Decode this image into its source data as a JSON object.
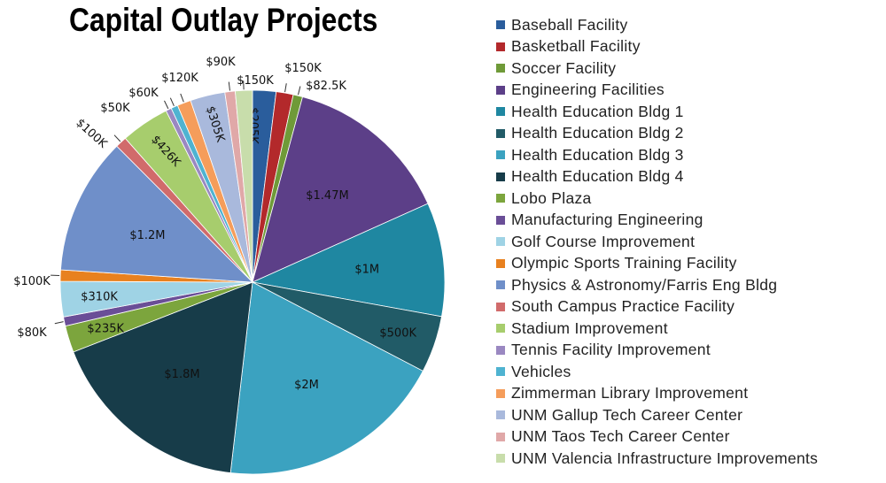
{
  "chart_data": {
    "type": "pie",
    "title": "Capital Outlay Projects",
    "legend_position": "right",
    "start": "top, clockwise",
    "slices": [
      {
        "name": "Baseball Facility",
        "value": 205000,
        "label": "$205K",
        "color": "#2a5d9c"
      },
      {
        "name": "Basketball Facility",
        "value": 150000,
        "label": "$150K",
        "color": "#b3292b"
      },
      {
        "name": "Soccer Facility",
        "value": 82500,
        "label": "$82.5K",
        "color": "#6f9a38"
      },
      {
        "name": "Engineering Facilities",
        "value": 1470000,
        "label": "$1.47M",
        "color": "#5c3f88"
      },
      {
        "name": "Health Education Bldg 1",
        "value": 1000000,
        "label": "$1M",
        "color": "#1f87a1"
      },
      {
        "name": "Health Education Bldg 2",
        "value": 500000,
        "label": "$500K",
        "color": "#215b67"
      },
      {
        "name": "Health Education Bldg 3",
        "value": 2000000,
        "label": "$2M",
        "color": "#3ba2c0"
      },
      {
        "name": "Health Education Bldg 4",
        "value": 1800000,
        "label": "$1.8M",
        "color": "#173c49"
      },
      {
        "name": "Lobo Plaza",
        "value": 235000,
        "label": "$235K",
        "color": "#7ca53d"
      },
      {
        "name": "Manufacturing Engineering",
        "value": 80000,
        "label": "$80K",
        "color": "#6a4e97"
      },
      {
        "name": "Golf Course Improvement",
        "value": 310000,
        "label": "$310K",
        "color": "#9fd3e5"
      },
      {
        "name": "Olympic Sports Training Facility",
        "value": 100000,
        "label": "$100K",
        "color": "#e8811f"
      },
      {
        "name": "Physics & Astronomy/Farris Eng Bldg",
        "value": 1200000,
        "label": "$1.2M",
        "color": "#6f8fc9"
      },
      {
        "name": "South Campus Practice Facility",
        "value": 100000,
        "label": "$100K",
        "color": "#d16b6b"
      },
      {
        "name": "Stadium Improvement",
        "value": 426000,
        "label": "$426K",
        "color": "#a7cd6d"
      },
      {
        "name": "Tennis Facility Improvement",
        "value": 50000,
        "label": "$50K",
        "color": "#9a88c1"
      },
      {
        "name": "Vehicles",
        "value": 60000,
        "label": "$60K",
        "color": "#4fb3d1"
      },
      {
        "name": "Zimmerman Library Improvement",
        "value": 120000,
        "label": "$120K",
        "color": "#f59d5b"
      },
      {
        "name": "UNM Gallup Tech Career Center",
        "value": 305000,
        "label": "$305K",
        "color": "#a9b9dc"
      },
      {
        "name": "UNM Taos Tech Career Center",
        "value": 90000,
        "label": "$90K",
        "color": "#e0a8a8"
      },
      {
        "name": "UNM Valencia Infrastructure Improvements",
        "value": 150000,
        "label": "$150K",
        "color": "#c8ddab"
      }
    ]
  }
}
